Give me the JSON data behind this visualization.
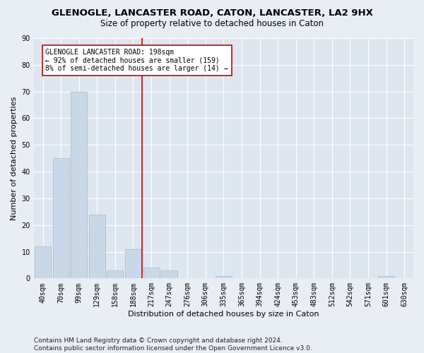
{
  "title": "GLENOGLE, LANCASTER ROAD, CATON, LANCASTER, LA2 9HX",
  "subtitle": "Size of property relative to detached houses in Caton",
  "xlabel": "Distribution of detached houses by size in Caton",
  "ylabel": "Number of detached properties",
  "bar_labels": [
    "40sqm",
    "70sqm",
    "99sqm",
    "129sqm",
    "158sqm",
    "188sqm",
    "217sqm",
    "247sqm",
    "276sqm",
    "306sqm",
    "335sqm",
    "365sqm",
    "394sqm",
    "424sqm",
    "453sqm",
    "483sqm",
    "512sqm",
    "542sqm",
    "571sqm",
    "601sqm",
    "630sqm"
  ],
  "bar_values": [
    12,
    45,
    70,
    24,
    3,
    11,
    4,
    3,
    0,
    0,
    1,
    0,
    0,
    0,
    0,
    0,
    0,
    0,
    0,
    1,
    0
  ],
  "bar_color": "#c8d8e8",
  "bar_edgecolor": "#a0b8cc",
  "ylim": [
    0,
    90
  ],
  "yticks": [
    0,
    10,
    20,
    30,
    40,
    50,
    60,
    70,
    80,
    90
  ],
  "ref_line_x": 5.5,
  "ref_line_color": "#cc0000",
  "annotation_text": "GLENOGLE LANCASTER ROAD: 198sqm\n← 92% of detached houses are smaller (159)\n8% of semi-detached houses are larger (14) →",
  "footer": "Contains HM Land Registry data © Crown copyright and database right 2024.\nContains public sector information licensed under the Open Government Licence v3.0.",
  "bg_color": "#e8eef4",
  "plot_bg_color": "#dde6ef",
  "grid_color": "#ffffff",
  "title_fontsize": 9.5,
  "subtitle_fontsize": 8.5,
  "label_fontsize": 8,
  "tick_fontsize": 7,
  "footer_fontsize": 6.5
}
